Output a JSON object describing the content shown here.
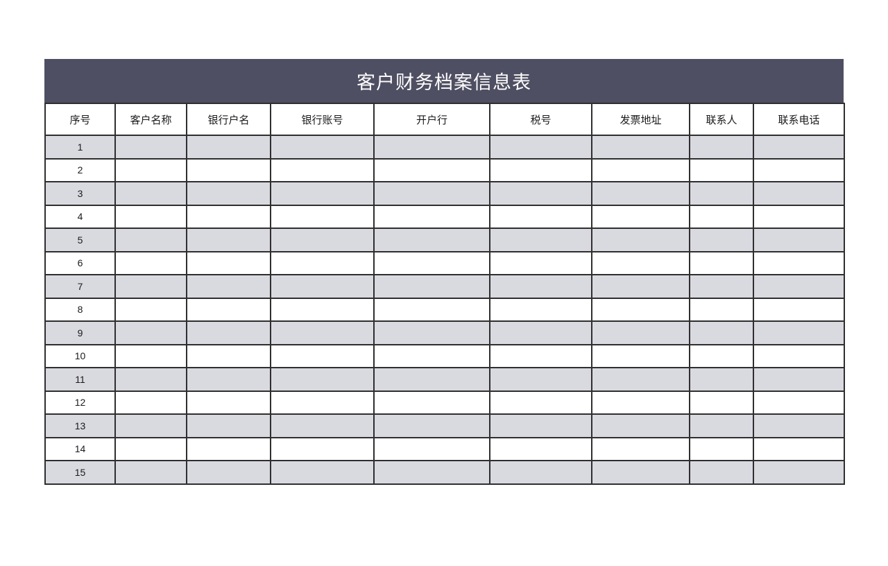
{
  "title": "客户财务档案信息表",
  "colors": {
    "title_band": "#4f4f63",
    "title_text": "#ffffff",
    "alt_row": "#d9d9e0",
    "grid_border": "#2e2e2e",
    "cell_text": "#1a1a1a"
  },
  "table": {
    "columns": [
      "序号",
      "客户名称",
      "银行户名",
      "银行账号",
      "开户行",
      "税号",
      "发票地址",
      "联系人",
      "联系电话"
    ],
    "rows": [
      [
        "1",
        "",
        "",
        "",
        "",
        "",
        "",
        "",
        ""
      ],
      [
        "2",
        "",
        "",
        "",
        "",
        "",
        "",
        "",
        ""
      ],
      [
        "3",
        "",
        "",
        "",
        "",
        "",
        "",
        "",
        ""
      ],
      [
        "4",
        "",
        "",
        "",
        "",
        "",
        "",
        "",
        ""
      ],
      [
        "5",
        "",
        "",
        "",
        "",
        "",
        "",
        "",
        ""
      ],
      [
        "6",
        "",
        "",
        "",
        "",
        "",
        "",
        "",
        ""
      ],
      [
        "7",
        "",
        "",
        "",
        "",
        "",
        "",
        "",
        ""
      ],
      [
        "8",
        "",
        "",
        "",
        "",
        "",
        "",
        "",
        ""
      ],
      [
        "9",
        "",
        "",
        "",
        "",
        "",
        "",
        "",
        ""
      ],
      [
        "10",
        "",
        "",
        "",
        "",
        "",
        "",
        "",
        ""
      ],
      [
        "11",
        "",
        "",
        "",
        "",
        "",
        "",
        "",
        ""
      ],
      [
        "12",
        "",
        "",
        "",
        "",
        "",
        "",
        "",
        ""
      ],
      [
        "13",
        "",
        "",
        "",
        "",
        "",
        "",
        "",
        ""
      ],
      [
        "14",
        "",
        "",
        "",
        "",
        "",
        "",
        "",
        ""
      ],
      [
        "15",
        "",
        "",
        "",
        "",
        "",
        "",
        "",
        ""
      ]
    ]
  }
}
